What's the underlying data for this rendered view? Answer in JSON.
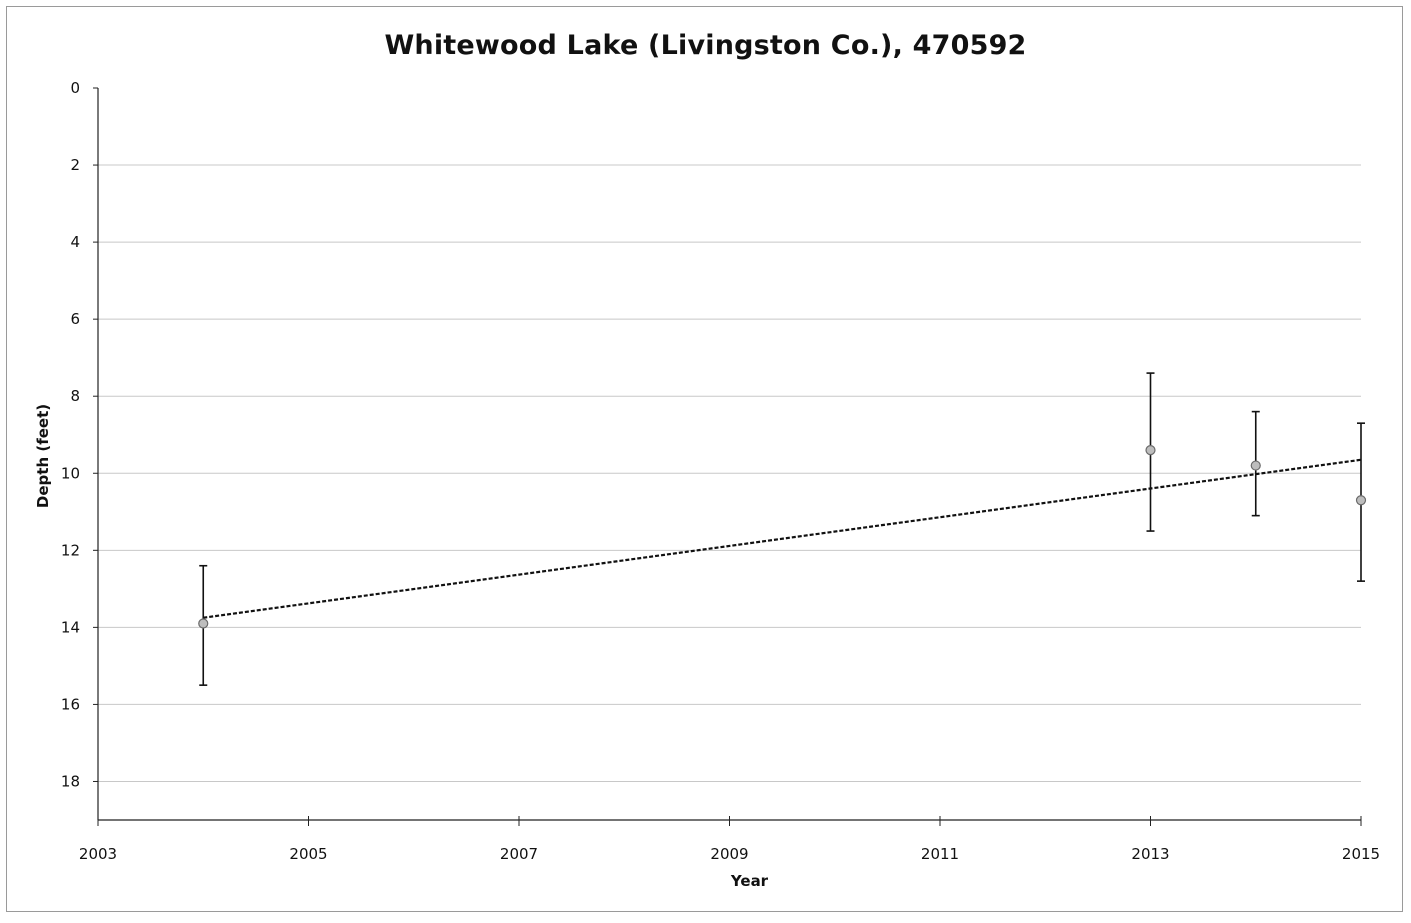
{
  "chart_data": {
    "type": "scatter",
    "title": "Whitewood Lake (Livingston Co.), 470592",
    "xlabel": "Year",
    "ylabel": "Depth (feet)",
    "xlim": [
      2003,
      2015
    ],
    "ylim": [
      0,
      19
    ],
    "y_inverted": true,
    "x_ticks": [
      "2003",
      "2005",
      "2007",
      "2009",
      "2011",
      "2013",
      "2015"
    ],
    "y_ticks": [
      "0",
      "2",
      "4",
      "6",
      "8",
      "10",
      "12",
      "14",
      "16",
      "18"
    ],
    "grid": true,
    "legend": "none",
    "series": [
      {
        "points": [
          {
            "x": 2004,
            "y": 13.9,
            "err_low": 12.4,
            "err_high": 15.5
          },
          {
            "x": 2013,
            "y": 9.4,
            "err_low": 7.4,
            "err_high": 11.5
          },
          {
            "x": 2014,
            "y": 9.8,
            "err_low": 8.4,
            "err_high": 11.1
          },
          {
            "x": 2015,
            "y": 10.7,
            "err_low": 8.7,
            "err_high": 12.8
          }
        ]
      }
    ],
    "trendline": {
      "style": "dashed",
      "start": {
        "x": 2004,
        "y": 13.75
      },
      "end": {
        "x": 2015,
        "y": 9.65
      }
    },
    "colors": {
      "marker_fill": "#bdbdbd",
      "marker_stroke": "#6b6b6b",
      "error_bar": "#111111",
      "trendline": "#111111",
      "grid": "#c8c8c8",
      "axis": "#222222"
    }
  }
}
